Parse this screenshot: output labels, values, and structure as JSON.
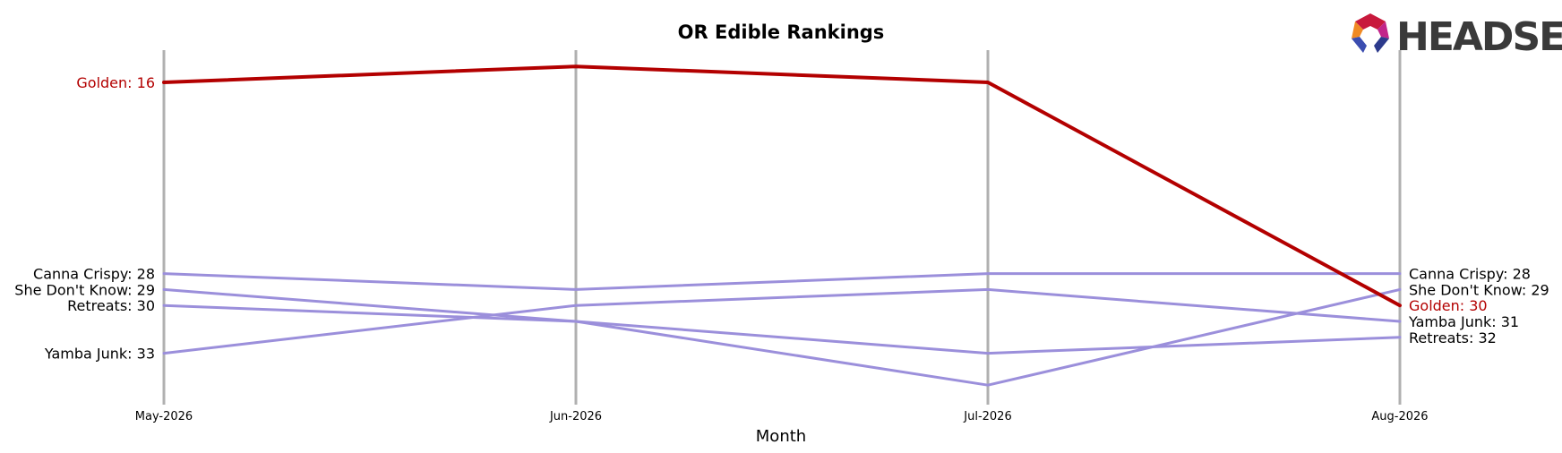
{
  "brand": {
    "name": "HEADSET"
  },
  "colors": {
    "highlight": "#b30000",
    "others": "#9b8fdb",
    "axis": "#b0b0b0"
  },
  "chart_data": {
    "type": "line",
    "title": "OR Edible Rankings",
    "xlabel": "Month",
    "ylabel": "",
    "x": [
      "May-2026",
      "Jun-2026",
      "Jul-2026",
      "Aug-2026"
    ],
    "ylim": [
      36,
      14
    ],
    "y_inverted": true,
    "grid": false,
    "highlight": "Golden",
    "series": [
      {
        "name": "Golden",
        "values": [
          16,
          15,
          16,
          30
        ],
        "highlight": true
      },
      {
        "name": "Canna Crispy",
        "values": [
          28,
          29,
          28,
          28
        ]
      },
      {
        "name": "She Don't Know",
        "values": [
          29,
          31,
          35,
          29
        ]
      },
      {
        "name": "Retreats",
        "values": [
          30,
          31,
          33,
          32
        ]
      },
      {
        "name": "Yamba Junk",
        "values": [
          33,
          30,
          29,
          31
        ]
      }
    ],
    "left_labels": [
      {
        "series": "Golden",
        "text": "Golden: 16"
      },
      {
        "series": "Canna Crispy",
        "text": "Canna Crispy: 28"
      },
      {
        "series": "She Don't Know",
        "text": "She Don't Know: 29"
      },
      {
        "series": "Retreats",
        "text": "Retreats: 30"
      },
      {
        "series": "Yamba Junk",
        "text": "Yamba Junk: 33"
      }
    ],
    "right_labels": [
      {
        "series": "Canna Crispy",
        "text": "Canna Crispy: 28"
      },
      {
        "series": "She Don't Know",
        "text": "She Don't Know: 29"
      },
      {
        "series": "Golden",
        "text": "Golden: 30"
      },
      {
        "series": "Yamba Junk",
        "text": "Yamba Junk: 31"
      },
      {
        "series": "Retreats",
        "text": "Retreats: 32"
      }
    ]
  }
}
